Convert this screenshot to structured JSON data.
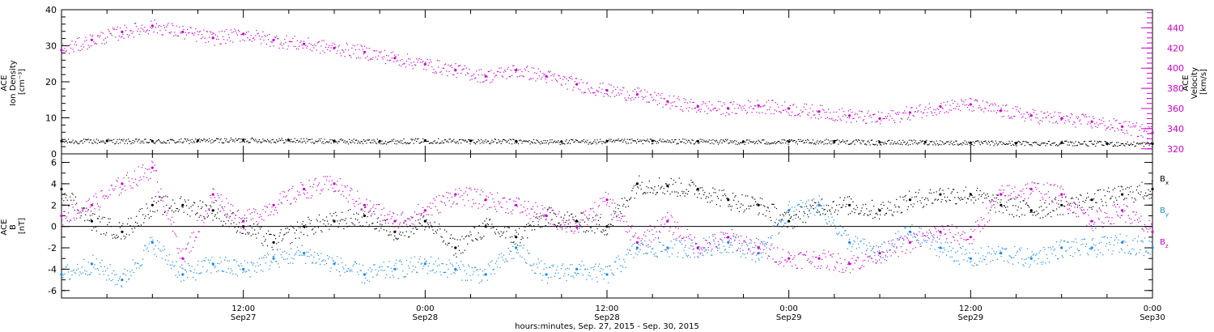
{
  "chart_data": [
    {
      "type": "scatter",
      "ylabel_lines": [
        "ACE",
        "Ion Density",
        "[cm⁻³]"
      ],
      "ylabel_right_lines": [
        "ACE",
        "Velocity",
        "[km/s]"
      ],
      "ylim": [
        0,
        40
      ],
      "ylim_right": [
        315,
        458
      ],
      "yticks": [
        0,
        10,
        20,
        30,
        40
      ],
      "yticks_right": [
        320,
        340,
        360,
        380,
        400,
        420,
        440
      ],
      "xlim": [
        0,
        72
      ],
      "colors": {
        "density": "#000000",
        "velocity": "#cc00cc"
      },
      "series": [
        {
          "key": "density",
          "axis": "left",
          "x": [
            0,
            3,
            6,
            9,
            12,
            15,
            18,
            21,
            24,
            27,
            30,
            33,
            36,
            39,
            42,
            45,
            48,
            51,
            54,
            57,
            60,
            63,
            66,
            69,
            72
          ],
          "values": [
            3.5,
            3.6,
            3.5,
            3.7,
            3.9,
            3.8,
            3.6,
            3.5,
            3.7,
            3.6,
            3.5,
            3.4,
            3.5,
            3.6,
            3.5,
            3.4,
            3.4,
            3.5,
            3.2,
            3.3,
            3.1,
            3.0,
            3.1,
            2.9,
            2.8
          ]
        },
        {
          "key": "velocity",
          "axis": "right",
          "x": [
            0,
            2,
            4,
            6,
            8,
            10,
            12,
            14,
            16,
            18,
            20,
            22,
            24,
            26,
            28,
            30,
            32,
            34,
            36,
            38,
            40,
            42,
            44,
            46,
            48,
            50,
            52,
            54,
            56,
            58,
            60,
            62,
            64,
            66,
            68,
            70,
            72
          ],
          "values": [
            418,
            428,
            436,
            442,
            436,
            430,
            434,
            428,
            424,
            420,
            416,
            410,
            404,
            398,
            392,
            398,
            392,
            384,
            378,
            374,
            367,
            362,
            360,
            363,
            360,
            357,
            353,
            350,
            356,
            362,
            364,
            358,
            353,
            350,
            347,
            342,
            336
          ]
        }
      ]
    },
    {
      "type": "scatter",
      "ylabel_lines": [
        "ACE",
        "B",
        "[nT]"
      ],
      "ylim": [
        -6.7,
        6.8
      ],
      "yticks": [
        -6,
        -4,
        -2,
        0,
        2,
        4,
        6
      ],
      "xlim": [
        0,
        72
      ],
      "colors": {
        "bx": "#000000",
        "by": "#1a88e6",
        "bz": "#cc00cc"
      },
      "legend": [
        {
          "key": "bx",
          "base": "B",
          "sub": "x"
        },
        {
          "key": "by",
          "base": "B",
          "sub": "y"
        },
        {
          "key": "bz",
          "base": "B",
          "sub": "z"
        }
      ],
      "series": [
        {
          "key": "bx",
          "x": [
            0,
            2,
            4,
            6,
            8,
            10,
            12,
            14,
            16,
            18,
            20,
            22,
            24,
            26,
            28,
            30,
            32,
            34,
            36,
            38,
            40,
            42,
            44,
            46,
            48,
            50,
            52,
            54,
            56,
            58,
            60,
            62,
            64,
            66,
            68,
            70,
            72
          ],
          "values": [
            3.5,
            0.5,
            -0.5,
            2.0,
            2.0,
            1.5,
            0.0,
            -1.5,
            0.0,
            0.5,
            1.0,
            -0.5,
            0.5,
            -2.0,
            0.0,
            -1.0,
            1.0,
            0.5,
            0.0,
            4.0,
            3.8,
            3.5,
            2.5,
            2.0,
            0.5,
            2.0,
            2.0,
            1.5,
            2.5,
            3.0,
            3.0,
            2.0,
            1.5,
            2.0,
            2.5,
            3.0,
            3.5
          ]
        },
        {
          "key": "by",
          "x": [
            0,
            2,
            4,
            6,
            8,
            10,
            12,
            14,
            16,
            18,
            20,
            22,
            24,
            26,
            28,
            30,
            32,
            34,
            36,
            38,
            40,
            42,
            44,
            46,
            48,
            50,
            52,
            54,
            56,
            58,
            60,
            62,
            64,
            66,
            68,
            70,
            72
          ],
          "values": [
            -4.5,
            -3.5,
            -5.0,
            -1.5,
            -4.5,
            -3.5,
            -4.0,
            -3.0,
            -2.5,
            -3.5,
            -4.5,
            -4.0,
            -3.5,
            -4.0,
            -4.5,
            -2.0,
            -4.5,
            -4.0,
            -4.5,
            -2.0,
            -2.0,
            -2.0,
            -1.5,
            -2.5,
            1.5,
            2.0,
            -1.5,
            -2.5,
            -0.5,
            -2.0,
            -3.0,
            -2.5,
            -3.0,
            -2.0,
            -2.0,
            -1.5,
            -2.0
          ]
        },
        {
          "key": "bz",
          "x": [
            0,
            2,
            4,
            6,
            8,
            10,
            12,
            14,
            16,
            18,
            20,
            22,
            24,
            26,
            28,
            30,
            32,
            34,
            36,
            38,
            40,
            42,
            44,
            46,
            48,
            50,
            52,
            54,
            56,
            58,
            60,
            62,
            64,
            66,
            68,
            70,
            72
          ],
          "values": [
            1.0,
            2.0,
            4.0,
            5.5,
            -3.0,
            3.0,
            0.5,
            2.0,
            3.5,
            4.0,
            2.0,
            0.5,
            1.5,
            3.0,
            2.5,
            2.0,
            1.0,
            0.0,
            2.5,
            -1.5,
            0.5,
            -2.0,
            -1.0,
            -2.0,
            -3.0,
            -3.0,
            -3.5,
            -2.5,
            -1.5,
            -0.5,
            -1.0,
            3.0,
            3.5,
            3.0,
            0.5,
            1.5,
            -0.5
          ]
        }
      ]
    }
  ],
  "x_axis": {
    "ticks": [
      {
        "t": 12,
        "time": "12:00",
        "date": "Sep27"
      },
      {
        "t": 24,
        "time": "0:00",
        "date": "Sep28"
      },
      {
        "t": 36,
        "time": "12:00",
        "date": "Sep28"
      },
      {
        "t": 48,
        "time": "0:00",
        "date": "Sep29"
      },
      {
        "t": 60,
        "time": "12:00",
        "date": "Sep29"
      },
      {
        "t": 72,
        "time": "0:00",
        "date": "Sep30"
      }
    ],
    "title": "hours:minutes, Sep. 27, 2015 - Sep. 30, 2015"
  }
}
